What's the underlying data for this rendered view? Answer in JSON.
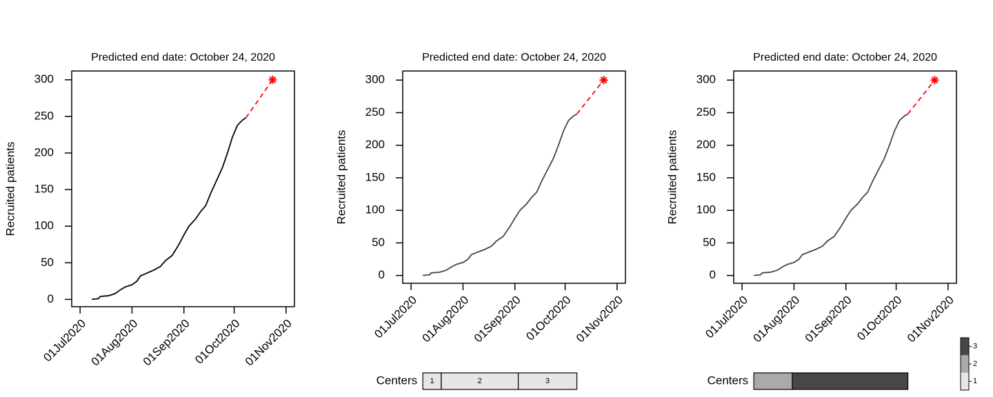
{
  "chart_data": [
    {
      "type": "line",
      "title": "Predicted end date: October 24, 2020",
      "y_label": "Recruited patients",
      "x": [
        "2020-07-08",
        "2020-07-12",
        "2020-07-13",
        "2020-07-18",
        "2020-07-22",
        "2020-07-25",
        "2020-07-28",
        "2020-08-01",
        "2020-08-04",
        "2020-08-06",
        "2020-08-09",
        "2020-08-14",
        "2020-08-18",
        "2020-08-21",
        "2020-08-25",
        "2020-08-29",
        "2020-09-01",
        "2020-09-04",
        "2020-09-08",
        "2020-09-11",
        "2020-09-14",
        "2020-09-17",
        "2020-09-20",
        "2020-09-24",
        "2020-09-27",
        "2020-09-30",
        "2020-10-03",
        "2020-10-06",
        "2020-10-08"
      ],
      "series": [
        {
          "color": "#000000",
          "values": [
            0,
            1,
            4,
            5,
            8,
            13,
            17,
            20,
            25,
            32,
            35,
            40,
            45,
            53,
            60,
            75,
            88,
            100,
            110,
            120,
            128,
            145,
            160,
            180,
            200,
            222,
            238,
            245,
            248
          ]
        },
        {
          "color": "#ff0000",
          "dash": true,
          "marker": "asterisk",
          "x": [
            "2020-10-08",
            "2020-10-24"
          ],
          "values": [
            248,
            300
          ]
        }
      ],
      "xlim": [
        "2020-06-26",
        "2020-11-06"
      ],
      "xticks": [
        {
          "value": "2020-07-01",
          "label": "01Jul2020"
        },
        {
          "value": "2020-08-01",
          "label": "01Aug2020"
        },
        {
          "value": "2020-09-01",
          "label": "01Sep2020"
        },
        {
          "value": "2020-10-01",
          "label": "01Oct2020"
        },
        {
          "value": "2020-11-01",
          "label": "01Nov2020"
        }
      ],
      "ylim": [
        -10,
        312
      ],
      "yticks": [
        0,
        50,
        100,
        150,
        200,
        250,
        300
      ]
    },
    {
      "type": "line",
      "title": "Predicted end date: October 24, 2020",
      "y_label": "Recruited patients",
      "x": [
        "2020-07-08",
        "2020-07-12",
        "2020-07-13",
        "2020-07-18",
        "2020-07-22",
        "2020-07-25",
        "2020-07-28",
        "2020-08-01",
        "2020-08-04",
        "2020-08-06",
        "2020-08-09",
        "2020-08-14",
        "2020-08-18",
        "2020-08-21",
        "2020-08-25",
        "2020-08-29",
        "2020-09-01",
        "2020-09-04",
        "2020-09-08",
        "2020-09-11",
        "2020-09-14",
        "2020-09-17",
        "2020-09-20",
        "2020-09-24",
        "2020-09-27",
        "2020-09-30",
        "2020-10-03",
        "2020-10-06",
        "2020-10-08"
      ],
      "series": [
        {
          "color": "#444444",
          "values": [
            0,
            1,
            4,
            5,
            8,
            13,
            17,
            20,
            25,
            32,
            35,
            40,
            45,
            53,
            60,
            75,
            88,
            100,
            110,
            120,
            128,
            145,
            160,
            180,
            200,
            222,
            238,
            245,
            248
          ]
        },
        {
          "color": "#ff0000",
          "dash": true,
          "marker": "asterisk",
          "x": [
            "2020-10-08",
            "2020-10-24"
          ],
          "values": [
            248,
            300
          ]
        }
      ],
      "xlim": [
        "2020-06-26",
        "2020-11-06"
      ],
      "xticks": [
        {
          "value": "2020-07-01",
          "label": "01Jul2020"
        },
        {
          "value": "2020-08-01",
          "label": "01Aug2020"
        },
        {
          "value": "2020-09-01",
          "label": "01Sep2020"
        },
        {
          "value": "2020-10-01",
          "label": "01Oct2020"
        },
        {
          "value": "2020-11-01",
          "label": "01Nov2020"
        }
      ],
      "ylim": [
        -12,
        314
      ],
      "yticks": [
        0,
        50,
        100,
        150,
        200,
        250,
        300
      ],
      "centers": {
        "label": "Centers",
        "show_levels": true,
        "segments": [
          {
            "level": 1,
            "color": "#e6e6e6",
            "start": "2020-07-08",
            "end": "2020-07-19"
          },
          {
            "level": 2,
            "color": "#e6e6e6",
            "start": "2020-07-19",
            "end": "2020-09-03"
          },
          {
            "level": 3,
            "color": "#e6e6e6",
            "start": "2020-09-03",
            "end": "2020-10-08"
          }
        ]
      }
    },
    {
      "type": "line",
      "title": "Predicted end date: October 24, 2020",
      "y_label": "Recruited patients",
      "x": [
        "2020-07-08",
        "2020-07-12",
        "2020-07-13",
        "2020-07-18",
        "2020-07-22",
        "2020-07-25",
        "2020-07-28",
        "2020-08-01",
        "2020-08-04",
        "2020-08-06",
        "2020-08-09",
        "2020-08-14",
        "2020-08-18",
        "2020-08-21",
        "2020-08-25",
        "2020-08-29",
        "2020-09-01",
        "2020-09-04",
        "2020-09-08",
        "2020-09-11",
        "2020-09-14",
        "2020-09-17",
        "2020-09-20",
        "2020-09-24",
        "2020-09-27",
        "2020-09-30",
        "2020-10-03",
        "2020-10-06",
        "2020-10-08"
      ],
      "series": [
        {
          "color": "#444444",
          "values": [
            0,
            1,
            4,
            5,
            8,
            13,
            17,
            20,
            25,
            32,
            35,
            40,
            45,
            53,
            60,
            75,
            88,
            100,
            110,
            120,
            128,
            145,
            160,
            180,
            200,
            222,
            238,
            245,
            248
          ]
        },
        {
          "color": "#ff0000",
          "dash": true,
          "marker": "asterisk",
          "x": [
            "2020-10-08",
            "2020-10-24"
          ],
          "values": [
            248,
            300
          ]
        }
      ],
      "xlim": [
        "2020-06-26",
        "2020-11-06"
      ],
      "xticks": [
        {
          "value": "2020-07-01",
          "label": "01Jul2020"
        },
        {
          "value": "2020-08-01",
          "label": "01Aug2020"
        },
        {
          "value": "2020-09-01",
          "label": "01Sep2020"
        },
        {
          "value": "2020-10-01",
          "label": "01Oct2020"
        },
        {
          "value": "2020-11-01",
          "label": "01Nov2020"
        }
      ],
      "ylim": [
        -12,
        314
      ],
      "yticks": [
        0,
        50,
        100,
        150,
        200,
        250,
        300
      ],
      "centers": {
        "label": "Centers",
        "show_levels": false,
        "segments": [
          {
            "level": 2,
            "color": "#aaaaaa",
            "start": "2020-07-08",
            "end": "2020-07-31"
          },
          {
            "level": 3,
            "color": "#474747",
            "start": "2020-07-31",
            "end": "2020-10-08"
          }
        ],
        "legend": [
          {
            "value": 1,
            "color": "#e6e6e6"
          },
          {
            "value": 2,
            "color": "#aaaaaa"
          },
          {
            "value": 3,
            "color": "#474747"
          }
        ]
      }
    }
  ]
}
